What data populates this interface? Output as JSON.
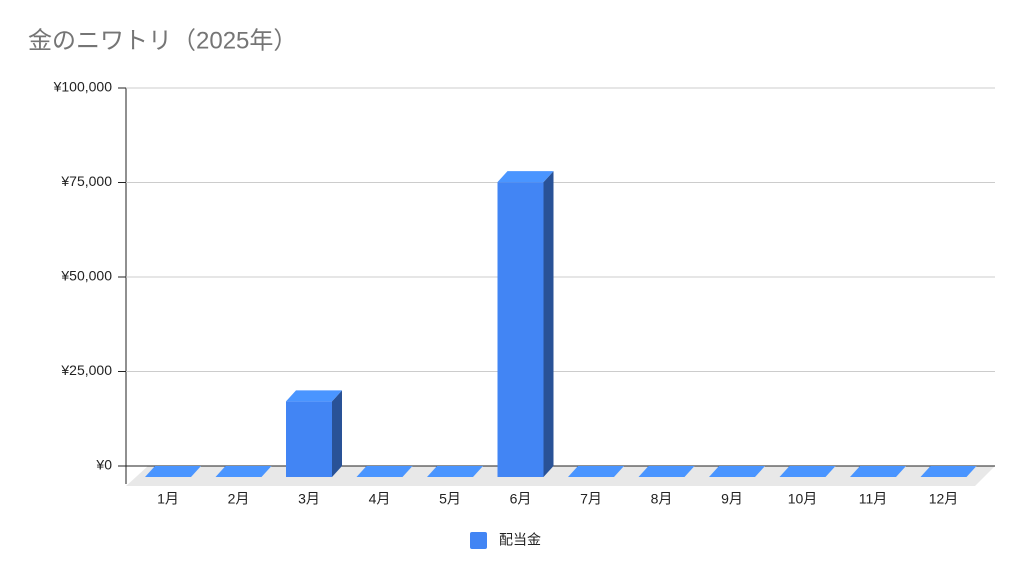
{
  "chart_data": {
    "type": "bar",
    "title": "金のニワトリ（2025年）",
    "categories": [
      "1月",
      "2月",
      "3月",
      "4月",
      "5月",
      "6月",
      "7月",
      "8月",
      "9月",
      "10月",
      "11月",
      "12月"
    ],
    "series": [
      {
        "name": "配当金",
        "color": "#4285f4",
        "values": [
          0,
          0,
          20000,
          0,
          0,
          78000,
          0,
          0,
          0,
          0,
          0,
          0
        ]
      }
    ],
    "ylim": [
      0,
      100000
    ],
    "yticks": [
      {
        "value": 0,
        "label": "¥0"
      },
      {
        "value": 25000,
        "label": "¥25,000"
      },
      {
        "value": 50000,
        "label": "¥50,000"
      },
      {
        "value": 75000,
        "label": "¥75,000"
      },
      {
        "value": 100000,
        "label": "¥100,000"
      }
    ],
    "grid": true,
    "legend": "bottom"
  }
}
